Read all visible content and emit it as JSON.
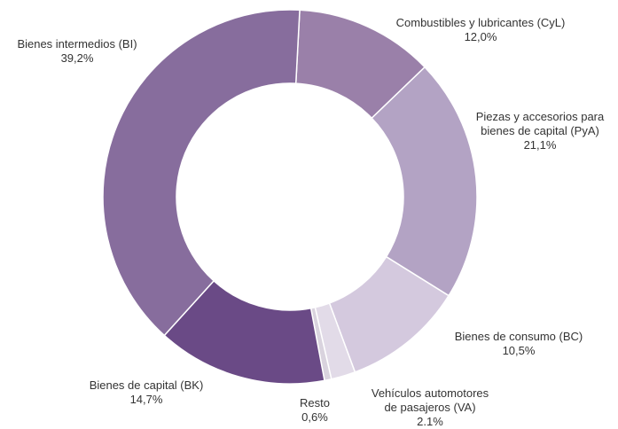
{
  "chart_data": {
    "type": "donut",
    "categories": [
      "Combustibles y lubricantes (CyL)",
      "Piezas y accesorios para bienes de capital (PyA)",
      "Bienes de consumo (BC)",
      "Vehículos automotores de pasajeros (VA)",
      "Resto",
      "Bienes de capital (BK)",
      "Bienes intermedios (BI)"
    ],
    "values": [
      12.0,
      21.1,
      10.5,
      2.1,
      0.6,
      14.7,
      39.2
    ],
    "value_labels": [
      "12,0%",
      "21,1%",
      "10,5%",
      "2.1%",
      "0,6%",
      "14,7%",
      "39,2%"
    ],
    "colors": [
      "#9a80a9",
      "#b3a3c4",
      "#d4c9de",
      "#e2dbe8",
      "#d9d3de",
      "#6a4a86",
      "#876d9d"
    ]
  }
}
